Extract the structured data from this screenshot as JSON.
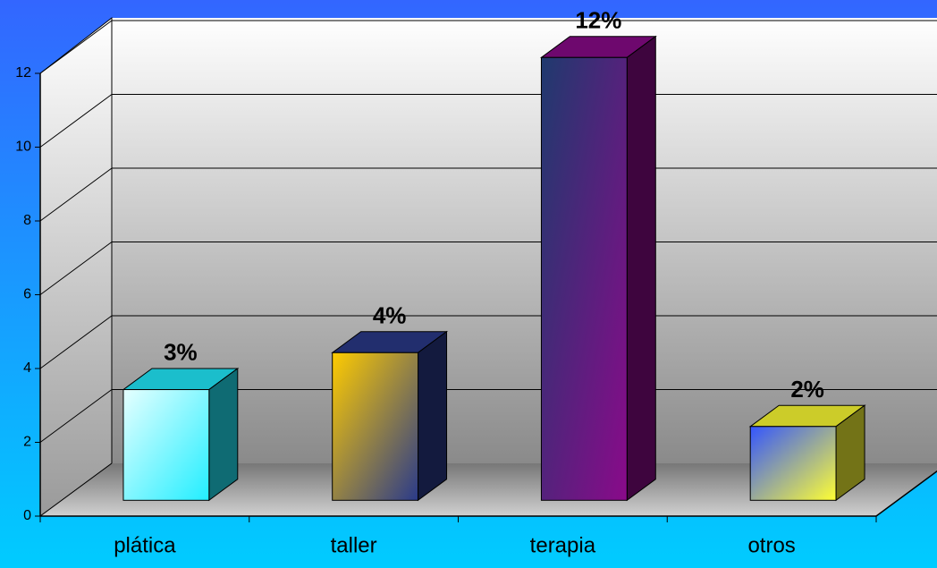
{
  "chart_data": {
    "type": "bar3d",
    "categories": [
      "plática",
      "taller",
      "terapia",
      "otros"
    ],
    "values": [
      3,
      4,
      12,
      2
    ],
    "value_labels": [
      "3%",
      "4%",
      "12%",
      "2%"
    ],
    "colors": [
      [
        "#e6ffff",
        "#22eeff"
      ],
      [
        "#ffcc00",
        "#2a3a8a"
      ],
      [
        "#1f3a6e",
        "#8a0a8a"
      ],
      [
        "#3355ff",
        "#ffff33"
      ]
    ],
    "ylim": [
      0,
      12
    ],
    "yticks": [
      0,
      2,
      4,
      6,
      8,
      10,
      12
    ],
    "grid": true
  }
}
